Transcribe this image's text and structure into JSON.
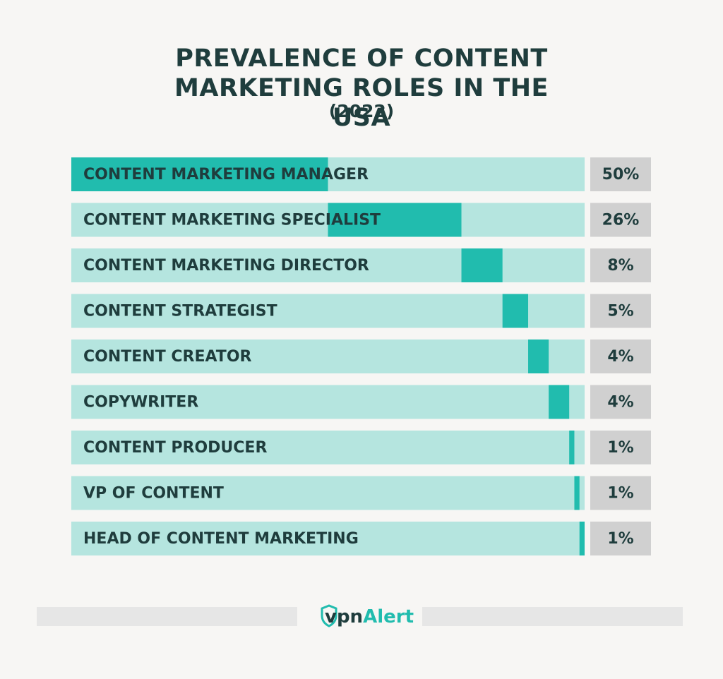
{
  "chart_data": {
    "type": "waterfall",
    "title": "PREVALENCE OF CONTENT MARKETING ROLES IN THE USA",
    "subtitle": "(2022)",
    "categories": [
      "CONTENT MARKETING MANAGER",
      "CONTENT MARKETING SPECIALIST",
      "CONTENT MARKETING DIRECTOR",
      "CONTENT STRATEGIST",
      "CONTENT CREATOR",
      "COPYWRITER",
      "CONTENT PRODUCER",
      "VP OF CONTENT",
      "HEAD OF CONTENT MARKETING"
    ],
    "values": [
      50,
      26,
      8,
      5,
      4,
      4,
      1,
      1,
      1
    ],
    "value_labels": [
      "50%",
      "26%",
      "8%",
      "5%",
      "4%",
      "4%",
      "1%",
      "1%",
      "1%"
    ],
    "xlim": [
      0,
      100
    ],
    "color": "#21bcae",
    "track_color": "#b5e5df"
  },
  "footer": {
    "logo": [
      "vpn",
      "Alert"
    ]
  }
}
